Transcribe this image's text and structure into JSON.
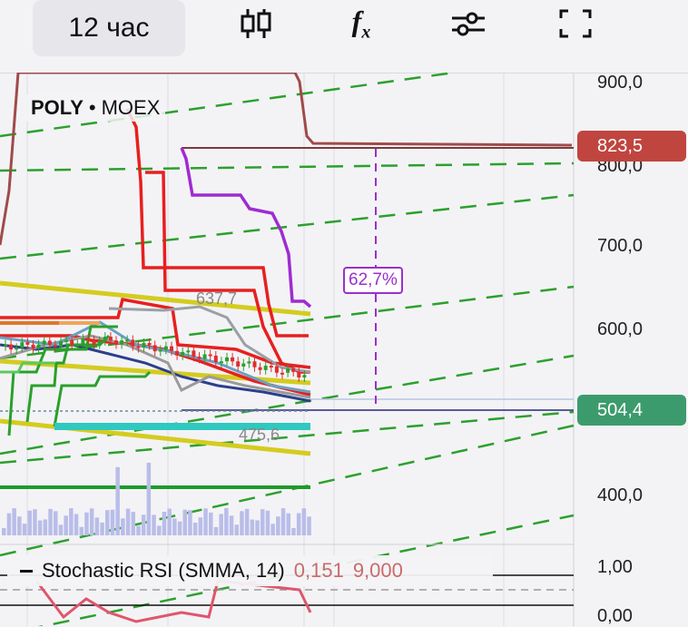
{
  "toolbar": {
    "interval_label": "12 час",
    "icons": [
      "candlestick-icon",
      "function-fx-icon",
      "settings-sliders-icon",
      "fullscreen-icon"
    ]
  },
  "legend": {
    "symbol": "POLY",
    "separator": "•",
    "exchange": "MOEX"
  },
  "price_tags": {
    "target": "823,5",
    "target_color": "#c0453f",
    "current": "504,4",
    "current_color": "#3c9b6c"
  },
  "measure": {
    "percent_label": "62,7%"
  },
  "indicator": {
    "name": "Stochastic RSI (SMMA, 14)",
    "value1": "0,151",
    "value2": "9,000",
    "axis_ticks": [
      "1,00",
      "0,00"
    ]
  },
  "chart_data": {
    "type": "line",
    "price_axis_ticks": [
      "900,0",
      "800,0",
      "700,0",
      "600,0",
      "400,0"
    ],
    "ylim": [
      360,
      930
    ],
    "annotations": [
      "637,7",
      "475,6"
    ],
    "levels": [
      {
        "label": "823,5",
        "value": 823.5
      },
      {
        "label": "504,4",
        "value": 504.4
      }
    ]
  }
}
